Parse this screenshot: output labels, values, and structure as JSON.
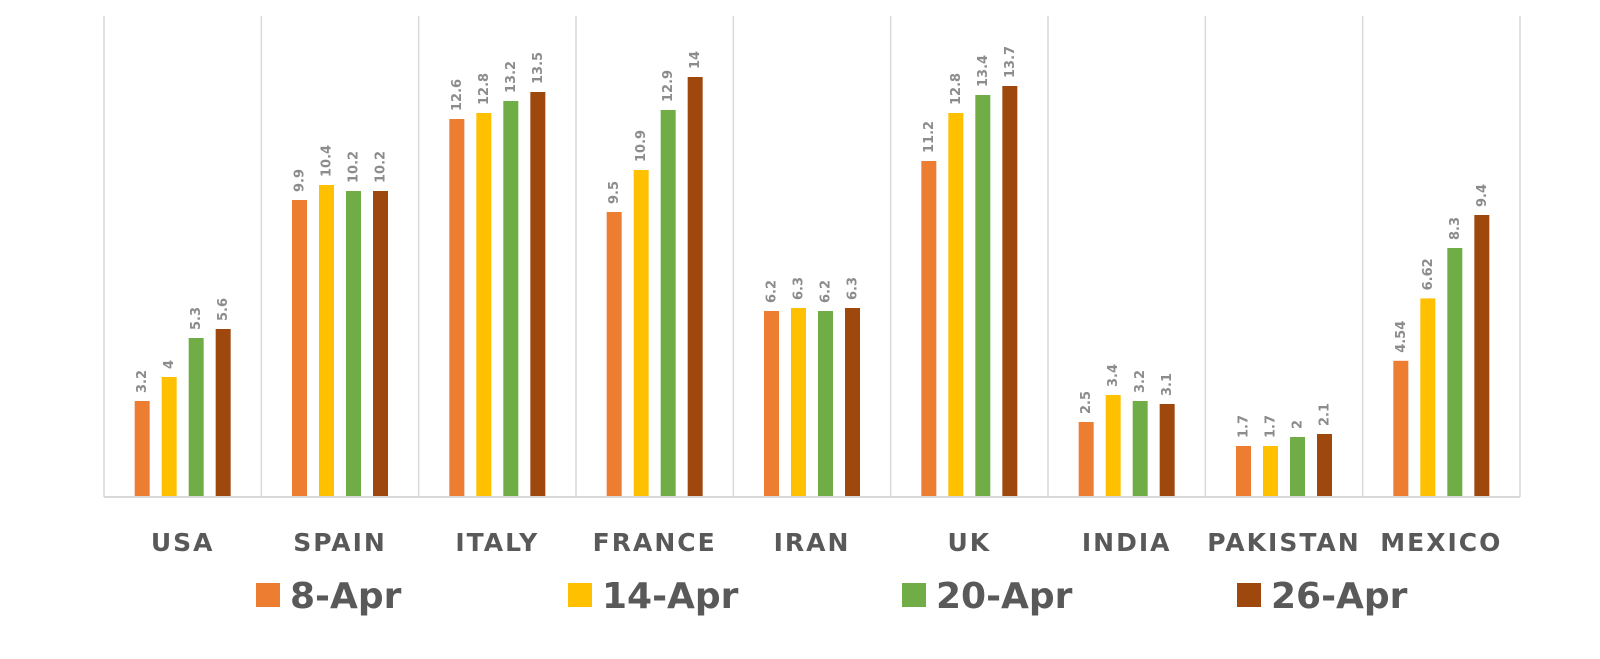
{
  "chart_data": {
    "type": "bar",
    "categories": [
      "USA",
      "SPAIN",
      "ITALY",
      "FRANCE",
      "IRAN",
      "UK",
      "INDIA",
      "PAKISTAN",
      "MEXICO"
    ],
    "series": [
      {
        "name": "8-Apr",
        "color": "#ED7D31",
        "values": [
          3.2,
          9.9,
          12.6,
          9.5,
          6.2,
          11.2,
          2.5,
          1.7,
          4.54
        ]
      },
      {
        "name": "14-Apr",
        "color": "#FFC000",
        "values": [
          4,
          10.4,
          12.8,
          10.9,
          6.3,
          12.8,
          3.4,
          1.7,
          6.62
        ]
      },
      {
        "name": "20-Apr",
        "color": "#70AD47",
        "values": [
          5.3,
          10.2,
          13.2,
          12.9,
          6.2,
          13.4,
          3.2,
          2,
          8.3
        ]
      },
      {
        "name": "26-Apr",
        "color": "#9E480E",
        "values": [
          5.6,
          10.2,
          13.5,
          14,
          6.3,
          13.7,
          3.1,
          2.1,
          9.4
        ]
      }
    ],
    "data_labels": [
      [
        "3.2",
        "9.9",
        "12.6",
        "9.5",
        "6.2",
        "11.2",
        "2.5",
        "1.7",
        "4.54"
      ],
      [
        "4",
        "10.4",
        "12.8",
        "10.9",
        "6.3",
        "12.8",
        "3.4",
        "1.7",
        "6.62"
      ],
      [
        "5.3",
        "10.2",
        "13.2",
        "12.9",
        "6.2",
        "13.4",
        "3.2",
        "2",
        "8.3"
      ],
      [
        "5.6",
        "10.2",
        "13.5",
        "14",
        "6.3",
        "13.7",
        "3.1",
        "2.1",
        "9.4"
      ]
    ],
    "ylim": [
      0,
      16
    ],
    "grid": "vertical category dividers",
    "legend_position": "bottom",
    "title": "",
    "xlabel": "",
    "ylabel": ""
  }
}
